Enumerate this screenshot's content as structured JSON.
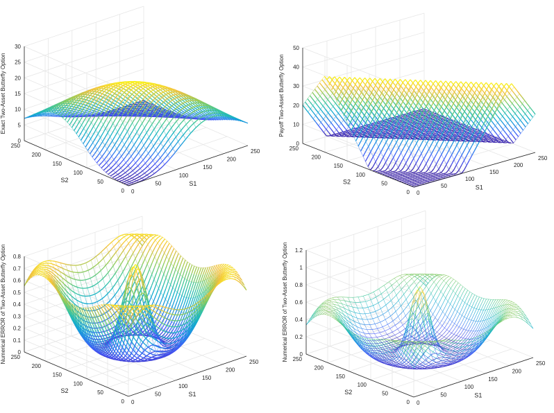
{
  "figure": {
    "background": "#ffffff",
    "axis_color": "#222222",
    "grid_color": "#e6e6e6"
  },
  "chart_data": [
    {
      "type": "surface",
      "surface": "exact",
      "zlabel": "Exact Two-Asset Butterfly Option",
      "xlabel": "S1",
      "ylabel": "S2",
      "x_ticks": [
        "0",
        "50",
        "100",
        "150",
        "200",
        "250"
      ],
      "y_ticks": [
        "0",
        "50",
        "100",
        "150",
        "200",
        "250"
      ],
      "z_ticks": [
        "0",
        "5",
        "10",
        "15",
        "20",
        "25",
        "30"
      ],
      "xlim": [
        0,
        250
      ],
      "ylim": [
        0,
        250
      ],
      "zlim": [
        0,
        30
      ],
      "z_peak": 22,
      "grid": true,
      "colormap": "parula"
    },
    {
      "type": "surface",
      "surface": "payoff",
      "zlabel": "Payoff Two-Asset Butterfly Option",
      "xlabel": "S1",
      "ylabel": "S2",
      "x_ticks": [
        "0",
        "50",
        "100",
        "150",
        "200",
        "250"
      ],
      "y_ticks": [
        "0",
        "50",
        "100",
        "150",
        "200",
        "250"
      ],
      "z_ticks": [
        "0",
        "10",
        "20",
        "30",
        "40",
        "50"
      ],
      "xlim": [
        0,
        250
      ],
      "ylim": [
        0,
        250
      ],
      "zlim": [
        0,
        50
      ],
      "z_peak": 40,
      "grid": true,
      "colormap": "parula"
    },
    {
      "type": "surface",
      "surface": "error",
      "zlabel": "Numerical ERROR of Two-Asset Butterfly Option",
      "xlabel": "S1",
      "ylabel": "S2",
      "x_ticks": [
        "0",
        "50",
        "100",
        "150",
        "200",
        "250"
      ],
      "y_ticks": [
        "0",
        "50",
        "100",
        "150",
        "200",
        "250"
      ],
      "z_ticks": [
        "0",
        "0.1",
        "0.2",
        "0.3",
        "0.4",
        "0.5",
        "0.6",
        "0.7",
        "0.8"
      ],
      "xlim": [
        0,
        250
      ],
      "ylim": [
        0,
        250
      ],
      "zlim": [
        0,
        0.8
      ],
      "z_peak": 0.75,
      "grid": true,
      "colormap": "parula"
    },
    {
      "type": "surface",
      "surface": "error_mesh",
      "zlabel": "Numerical ERROR of Two-Asset Butterfly Option",
      "xlabel": "S1",
      "ylabel": "S2",
      "x_ticks": [
        "0",
        "50",
        "100",
        "150",
        "200",
        "250"
      ],
      "y_ticks": [
        "0",
        "50",
        "100",
        "150",
        "200",
        "250"
      ],
      "z_ticks": [
        "0",
        "0.2",
        "0.4",
        "0.6",
        "0.8",
        "1",
        "1.2"
      ],
      "xlim": [
        0,
        250
      ],
      "ylim": [
        0,
        250
      ],
      "zlim": [
        0,
        1.2
      ],
      "z_peak": 0.8,
      "grid": true,
      "colormap": "parula"
    }
  ]
}
